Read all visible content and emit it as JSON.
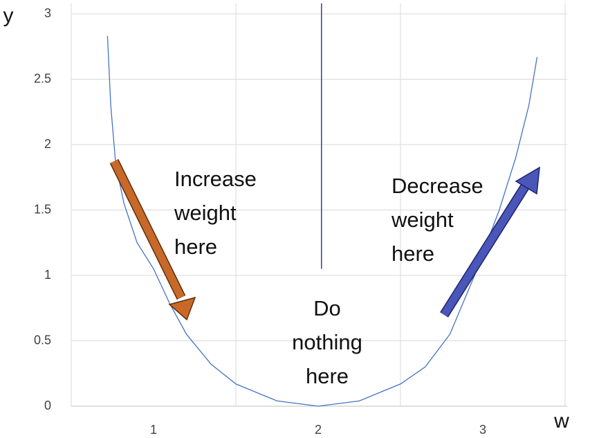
{
  "chart_data": {
    "type": "line",
    "x_label": "w",
    "y_label": "y",
    "x": [
      0.72,
      0.74,
      0.77,
      0.82,
      0.9,
      1.0,
      1.1,
      1.2,
      1.35,
      1.5,
      1.75,
      2.0,
      2.25,
      2.5,
      2.65,
      2.8,
      2.95,
      3.1,
      3.2,
      3.28,
      3.33
    ],
    "values": [
      2.83,
      2.3,
      1.85,
      1.55,
      1.25,
      1.05,
      0.78,
      0.55,
      0.32,
      0.17,
      0.04,
      0,
      0.04,
      0.17,
      0.3,
      0.55,
      1.0,
      1.5,
      1.9,
      2.3,
      2.67
    ],
    "color": "#4472c4",
    "xlim": [
      0.5,
      3.5
    ],
    "xticks": [
      1,
      2,
      3
    ],
    "ylim": [
      0,
      3
    ],
    "yticks": [
      0,
      0.5,
      1,
      1.5,
      2,
      2.5,
      3
    ],
    "grid": true,
    "divider": {
      "x": 2.02,
      "y": [
        1.05,
        3.08
      ],
      "color": "#2f3fa0"
    },
    "annotations": [
      {
        "lines": [
          "Increase",
          "weight",
          "here"
        ]
      },
      {
        "lines": [
          "Decrease",
          "weight",
          "here"
        ]
      },
      {
        "lines": [
          "Do",
          "nothing",
          "here"
        ]
      }
    ]
  }
}
